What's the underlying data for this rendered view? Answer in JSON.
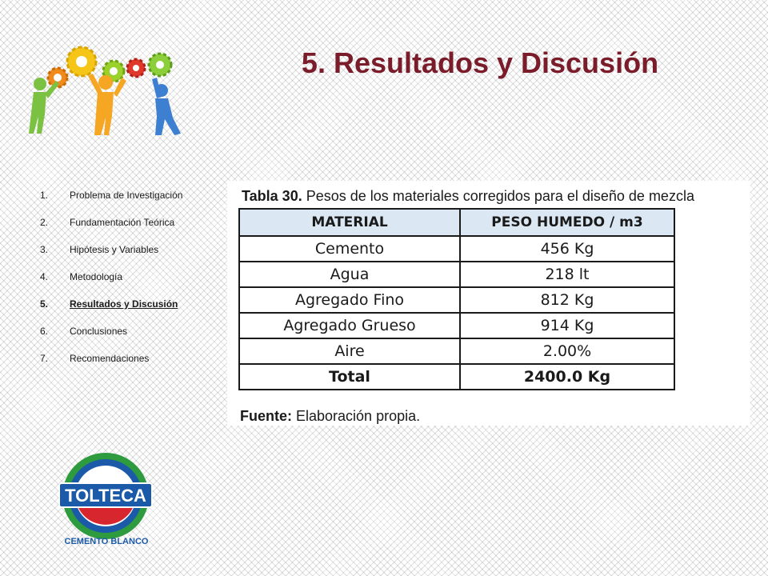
{
  "slide": {
    "title": "5. Resultados y Discusión"
  },
  "agenda": {
    "items": [
      {
        "num": "1.",
        "label": "Problema de Investigación"
      },
      {
        "num": "2.",
        "label": "Fundamentación Teórica"
      },
      {
        "num": "3.",
        "label": "Hipótesis y Variables"
      },
      {
        "num": "4.",
        "label": "Metodología"
      },
      {
        "num": "5.",
        "label": "Resultados y Discusión",
        "active": true
      },
      {
        "num": "6.",
        "label": "Conclusiones"
      },
      {
        "num": "7.",
        "label": "Recomendaciones"
      }
    ]
  },
  "table": {
    "caption_bold": "Tabla 30.",
    "caption_rest": " Pesos de los materiales corregidos para el diseño de mezcla",
    "headers": [
      "MATERIAL",
      "PESO HUMEDO / m3"
    ],
    "rows": [
      [
        "Cemento",
        "456 Kg"
      ],
      [
        "Agua",
        "218 lt"
      ],
      [
        "Agregado Fino",
        "812 Kg"
      ],
      [
        "Agregado Grueso",
        "914 Kg"
      ],
      [
        "Aire",
        "2.00%"
      ],
      [
        "Total",
        "2400.0 Kg"
      ]
    ],
    "source_bold": "Fuente:",
    "source_rest": " Elaboración propia."
  },
  "logo": {
    "brand": "TOLTECA",
    "tagline": "CEMENTO BLANCO"
  },
  "colors": {
    "title": "#7b1c2b",
    "table_header": "#dbe7f3",
    "logo_blue": "#1a5aa8",
    "logo_green": "#2e9b3e",
    "logo_red": "#d8262e"
  },
  "icons": [
    "gears-people-illustration",
    "tolteca-logo"
  ]
}
